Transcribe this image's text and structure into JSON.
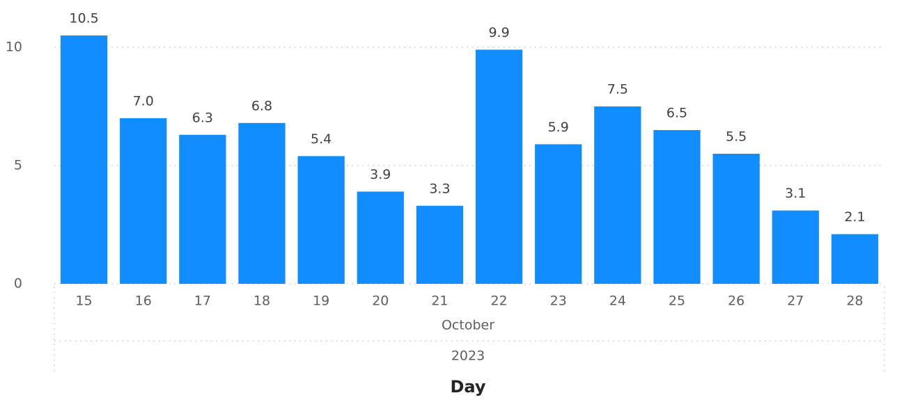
{
  "chart_data": {
    "type": "bar",
    "categories": [
      "15",
      "16",
      "17",
      "18",
      "19",
      "20",
      "21",
      "22",
      "23",
      "24",
      "25",
      "26",
      "27",
      "28"
    ],
    "values": [
      10.5,
      7.0,
      6.3,
      6.8,
      5.4,
      3.9,
      3.3,
      9.9,
      5.9,
      7.5,
      6.5,
      5.5,
      3.1,
      2.1
    ],
    "value_labels": [
      "10.5",
      "7.0",
      "6.3",
      "6.8",
      "5.4",
      "3.9",
      "3.3",
      "9.9",
      "5.9",
      "7.5",
      "6.5",
      "5.5",
      "3.1",
      "2.1"
    ],
    "color": "#118dff",
    "month": "October",
    "year": "2023",
    "xlabel": "Day",
    "ylim": [
      0,
      12
    ],
    "yticks": [
      0,
      5,
      10
    ],
    "grid": true
  }
}
